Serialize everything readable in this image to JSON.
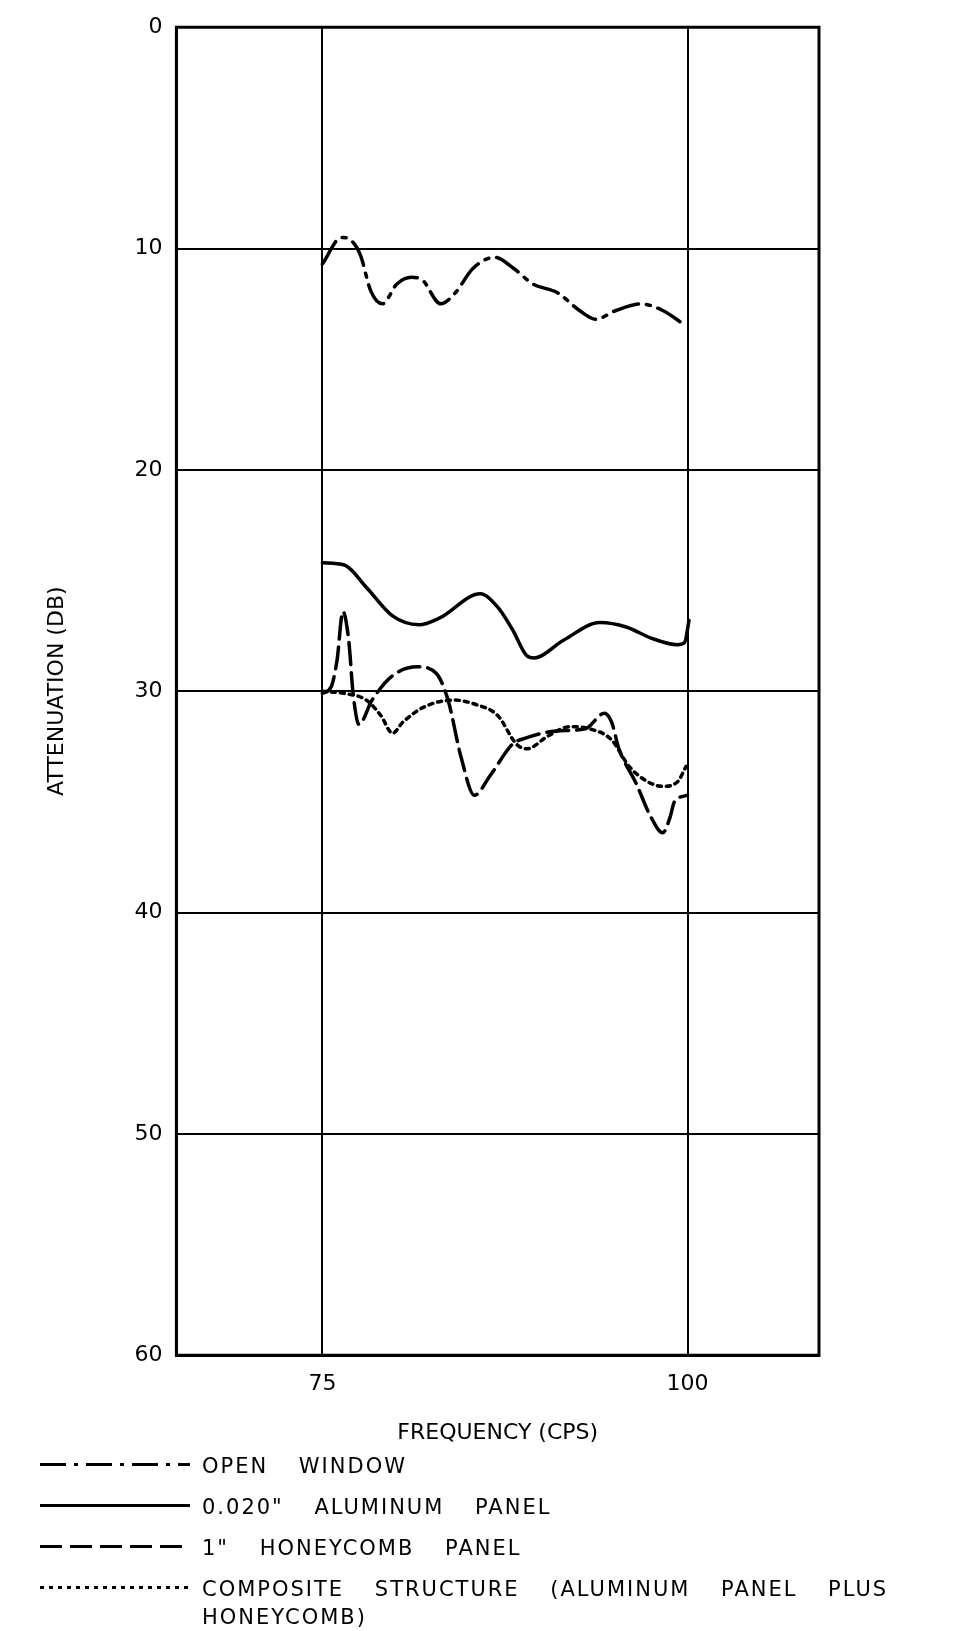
{
  "chart_data": {
    "type": "line",
    "xlabel": "FREQUENCY (CPS)",
    "ylabel": "ATTENUATION (DB)",
    "xlim": [
      65,
      109
    ],
    "xticks": [
      75,
      100
    ],
    "ylim": [
      60,
      0
    ],
    "yticks": [
      0,
      10,
      20,
      30,
      40,
      50,
      60
    ],
    "grid": true,
    "legend": "bottom",
    "marker": "none",
    "series": [
      {
        "name": "OPEN WINDOW",
        "color": "#000000",
        "line_style": "dashdot",
        "x": [
          75,
          76.3,
          76.9,
          77.6,
          78.3,
          79.1,
          80.1,
          81.1,
          81.8,
          83.1,
          84.1,
          85.3,
          86.8,
          88.1,
          89.4,
          91.1,
          92.6,
          93.7,
          95.1,
          96.8,
          98.3,
          99.9
        ],
        "values": [
          10.7,
          9.5,
          9.6,
          10.3,
          11.9,
          12.5,
          11.6,
          11.3,
          11.4,
          12.5,
          12.0,
          10.9,
          10.4,
          10.9,
          11.6,
          12.0,
          12.8,
          13.2,
          12.8,
          12.5,
          12.8,
          13.5
        ]
      },
      {
        "name": "0.020\" ALUMINUM PANEL",
        "color": "#000000",
        "line_style": "solid",
        "x": [
          75,
          76.5,
          78,
          79.8,
          81.6,
          83,
          85.8,
          87,
          88,
          89,
          89.5,
          91.5,
          94,
          95.8,
          97.5,
          99.3,
          99.8,
          100.1
        ],
        "values": [
          24.2,
          24.3,
          25.3,
          26.6,
          27.0,
          26.7,
          25.6,
          26.2,
          27.2,
          28.4,
          28.5,
          27.7,
          26.9,
          27.1,
          27.6,
          27.9,
          27.8,
          26.8
        ]
      },
      {
        "name": "1\" HONEYCOMB PANEL",
        "color": "#000000",
        "line_style": "dashed",
        "x": [
          75,
          75.6,
          76,
          76.4,
          76.8,
          77.1,
          77.5,
          78.4,
          79.8,
          81.5,
          82.8,
          83.6,
          84.5,
          85.4,
          86.5,
          88,
          89,
          91,
          93,
          94.3,
          94.8,
          95.3,
          96.5,
          97.5,
          98.3,
          98.8,
          99.1,
          100
        ],
        "values": [
          30.1,
          29.8,
          28.6,
          26.4,
          27.7,
          30.1,
          31.5,
          30.4,
          29.3,
          28.9,
          29.2,
          30.4,
          33.0,
          34.7,
          33.8,
          32.4,
          32.1,
          31.8,
          31.7,
          31.0,
          31.4,
          32.6,
          34.2,
          35.7,
          36.4,
          35.7,
          35.0,
          34.7
        ]
      },
      {
        "name": "COMPOSITE STRUCTURE (ALUMINUM PANEL PLUS HONEYCOMB)",
        "color": "#000000",
        "line_style": "dotted",
        "x": [
          75,
          76.5,
          78,
          79,
          79.8,
          80.5,
          82,
          84,
          85.5,
          87,
          88.3,
          89,
          90.5,
          92,
          93.3,
          94.8,
          96,
          97.3,
          98.3,
          99.3,
          99.9
        ],
        "values": [
          30.0,
          30.1,
          30.4,
          31.1,
          31.9,
          31.4,
          30.7,
          30.4,
          30.6,
          31.1,
          32.4,
          32.6,
          32.0,
          31.6,
          31.7,
          32.2,
          33.4,
          34.1,
          34.3,
          34.1,
          33.4
        ]
      }
    ]
  }
}
